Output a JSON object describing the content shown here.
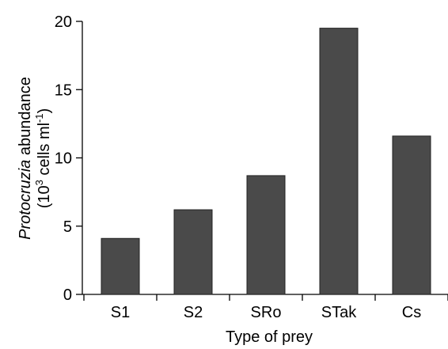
{
  "chart_data": {
    "type": "bar",
    "categories": [
      "S1",
      "S2",
      "SRo",
      "STak",
      "Cs"
    ],
    "values": [
      4.1,
      6.2,
      8.7,
      19.5,
      11.6
    ],
    "xlabel": "Type of prey",
    "ylabel": {
      "line1_italic": "Protocruzia",
      "line1_rest": " abundance",
      "line2_pre": "(10",
      "line2_sup1": "3",
      "line2_mid": " cells ml",
      "line2_sup2": "-1",
      "line2_post": ")"
    },
    "ylim": [
      0,
      20
    ],
    "yticks": [
      0,
      5,
      10,
      15,
      20
    ],
    "bar_color": "#4a4a4a",
    "grid": false
  }
}
